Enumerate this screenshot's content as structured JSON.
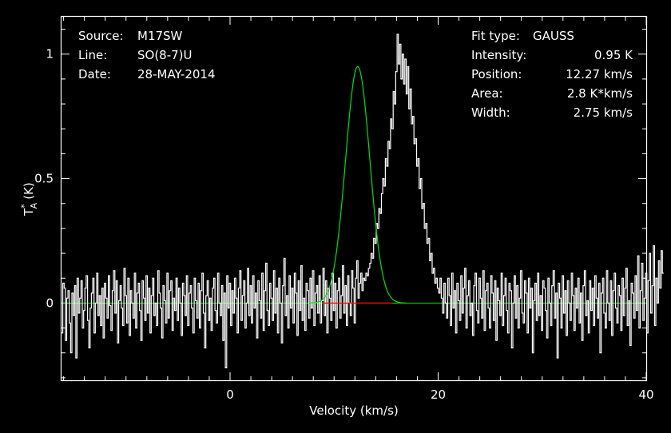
{
  "chart_data": {
    "type": "line",
    "title": "",
    "xlabel": "Velocity (km/s)",
    "ylabel_main": "T",
    "ylabel_sub": "A",
    "ylabel_sup": "*",
    "ylabel_unit": "(K)",
    "xlim": [
      -16.2,
      40
    ],
    "ylim": [
      -0.31,
      1.15
    ],
    "x_ticks": [
      {
        "value": 0,
        "label": "0"
      },
      {
        "value": 20,
        "label": "20"
      },
      {
        "value": 40,
        "label": "40"
      }
    ],
    "y_ticks": [
      {
        "value": 0,
        "label": "0"
      },
      {
        "value": 0.5,
        "label": "0.5"
      },
      {
        "value": 1,
        "label": "1"
      }
    ],
    "x_minor_step": 2,
    "y_minor_step": 0.1,
    "info_left": [
      {
        "key": "Source:",
        "value": "M17SW"
      },
      {
        "key": "Line:",
        "value": "SO(8-7)U"
      },
      {
        "key": "Date:",
        "value": "28-MAY-2014"
      }
    ],
    "info_right": [
      {
        "key": "Fit type:",
        "value": "GAUSS"
      },
      {
        "key": "Intensity:",
        "value": "0.95 K"
      },
      {
        "key": "Position:",
        "value": "12.27 km/s"
      },
      {
        "key": "Area:",
        "value": "2.8 K*km/s"
      },
      {
        "key": "Width:",
        "value": "2.75 km/s"
      }
    ],
    "fit": {
      "amplitude": 0.95,
      "center": 12.27,
      "fwhm": 2.75
    },
    "series": [
      {
        "x_start": -16.2,
        "x_step": 0.125,
        "color": "#ffffff",
        "values": [
          -0.12,
          0.08,
          0.06,
          -0.15,
          0.02,
          0.05,
          -0.08,
          -0.2,
          0.04,
          -0.05,
          0.07,
          -0.22,
          0.1,
          -0.04,
          0.02,
          0.09,
          -0.1,
          -0.03,
          0.06,
          0.11,
          -0.07,
          -0.18,
          -0.02,
          0.04,
          0.1,
          -0.12,
          0.0,
          0.12,
          -0.05,
          0.03,
          -0.09,
          0.06,
          -0.14,
          0.08,
          0.02,
          -0.06,
          0.11,
          -0.01,
          -0.11,
          0.05,
          0.13,
          -0.04,
          0.09,
          -0.16,
          0.01,
          0.07,
          -0.02,
          -0.09,
          0.14,
          0.03,
          -0.08,
          0.1,
          -0.13,
          0.05,
          0.0,
          -0.06,
          0.12,
          -0.1,
          0.04,
          0.08,
          -0.03,
          -0.15,
          0.09,
          0.02,
          -0.07,
          0.11,
          -0.04,
          0.06,
          -0.12,
          0.03,
          0.1,
          -0.05,
          0.0,
          -0.09,
          0.13,
          0.04,
          -0.02,
          -0.14,
          0.07,
          0.01,
          -0.08,
          0.12,
          -0.06,
          0.05,
          0.09,
          -0.11,
          0.02,
          -0.03,
          0.1,
          -0.07,
          0.06,
          0.0,
          -0.13,
          0.08,
          0.03,
          -0.05,
          0.11,
          -0.09,
          0.04,
          0.07,
          -0.02,
          -0.12,
          0.1,
          0.01,
          -0.06,
          0.08,
          -0.1,
          0.05,
          0.12,
          -0.04,
          -0.18,
          0.03,
          0.09,
          -0.07,
          0.02,
          -0.11,
          0.06,
          0.1,
          -0.03,
          -0.08,
          0.12,
          0.0,
          -0.05,
          0.07,
          -0.15,
          0.04,
          -0.26,
          0.11,
          -0.02,
          0.08,
          -0.09,
          0.05,
          -0.04,
          0.1,
          0.02,
          -0.12,
          0.06,
          0.13,
          -0.07,
          0.03,
          0.09,
          -0.1,
          0.0,
          0.14,
          -0.05,
          0.07,
          -0.08,
          0.11,
          -0.02,
          0.04,
          -0.14,
          0.09,
          0.01,
          -0.06,
          0.12,
          -0.11,
          0.05,
          0.16,
          -0.03,
          -0.09,
          0.08,
          0.02,
          -0.07,
          0.13,
          -0.04,
          0.06,
          -0.12,
          0.1,
          0.0,
          -0.16,
          0.07,
          0.18,
          -0.05,
          0.03,
          -0.1,
          0.11,
          -0.02,
          0.06,
          -0.08,
          0.12,
          0.04,
          -0.13,
          0.09,
          -0.03,
          0.15,
          -0.07,
          0.02,
          -0.11,
          0.08,
          0.05,
          -0.06,
          0.1,
          -0.02,
          0.13,
          -0.09,
          0.04,
          0.07,
          -0.04,
          0.11,
          -0.08,
          0.01,
          0.14,
          -0.05,
          0.09,
          -0.12,
          0.06,
          0.02,
          -0.07,
          0.12,
          -0.03,
          0.08,
          -0.1,
          0.05,
          0.1,
          -0.06,
          0.03,
          0.15,
          -0.04,
          0.07,
          -0.09,
          0.11,
          0.0,
          -0.05,
          0.13,
          0.06,
          -0.08,
          0.1,
          0.17,
          0.02,
          0.08,
          0.12,
          0.05,
          0.1,
          0.09,
          0.12,
          0.11,
          0.14,
          0.16,
          0.2,
          0.18,
          0.26,
          0.24,
          0.32,
          0.3,
          0.38,
          0.36,
          0.44,
          0.5,
          0.47,
          0.58,
          0.55,
          0.65,
          0.62,
          0.74,
          0.7,
          0.85,
          0.8,
          0.93,
          1.08,
          0.96,
          1.04,
          0.9,
          1.0,
          0.88,
          0.98,
          0.84,
          0.95,
          0.78,
          0.86,
          0.72,
          0.75,
          0.64,
          0.66,
          0.55,
          0.58,
          0.46,
          0.5,
          0.38,
          0.4,
          0.3,
          0.32,
          0.24,
          0.26,
          0.17,
          0.2,
          0.12,
          0.14,
          0.08,
          0.1,
          0.06,
          0.04,
          0.1,
          0.02,
          -0.04,
          0.08,
          0.0,
          -0.06,
          0.1,
          0.03,
          -0.09,
          0.12,
          -0.02,
          0.05,
          -0.12,
          0.08,
          0.01,
          -0.07,
          0.11,
          -0.04,
          0.06,
          0.14,
          -0.1,
          0.03,
          0.09,
          -0.05,
          0.0,
          -0.13,
          0.07,
          0.12,
          -0.03,
          -0.08,
          0.1,
          0.02,
          -0.06,
          0.13,
          -0.11,
          0.05,
          0.08,
          -0.02,
          -0.1,
          0.11,
          0.04,
          -0.07,
          0.09,
          -0.15,
          0.06,
          0.01,
          -0.05,
          0.12,
          -0.09,
          0.03,
          0.1,
          -0.03,
          -0.12,
          0.08,
          0.05,
          -0.18,
          0.0,
          0.11,
          -0.06,
          0.07,
          -0.1,
          0.02,
          0.13,
          -0.04,
          -0.08,
          0.09,
          0.04,
          -0.12,
          0.1,
          -0.02,
          0.06,
          -0.2,
          0.01,
          0.08,
          -0.07,
          0.12,
          -0.05,
          0.03,
          -0.11,
          0.09,
          0.06,
          -0.03,
          -0.14,
          0.1,
          0.0,
          -0.09,
          0.07,
          0.13,
          -0.06,
          0.04,
          -0.22,
          0.08,
          0.02,
          -0.1,
          0.11,
          -0.04,
          0.05,
          -0.13,
          0.09,
          0.0,
          -0.07,
          0.12,
          0.03,
          -0.11,
          0.06,
          -0.02,
          0.1,
          -0.08,
          0.04,
          -0.15,
          0.07,
          0.13,
          -0.05,
          0.01,
          -0.12,
          0.09,
          -0.03,
          0.06,
          -0.09,
          0.11,
          0.02,
          -0.06,
          0.08,
          -0.2,
          0.04,
          0.1,
          -0.04,
          -0.1,
          0.13,
          0.0,
          -0.07,
          0.09,
          -0.13,
          0.05,
          0.12,
          -0.02,
          -0.08,
          0.07,
          0.03,
          -0.11,
          0.1,
          -0.05,
          0.06,
          0.14,
          -0.09,
          0.01,
          -0.17,
          0.08,
          0.04,
          -0.06,
          0.11,
          -0.03,
          0.19,
          -0.1,
          0.05,
          0.16,
          -0.07,
          0.02,
          0.12,
          -0.12,
          0.09,
          0.2,
          -0.04,
          0.07,
          0.23,
          -0.09,
          0.1,
          0.0,
          0.17,
          0.06,
          0.21,
          0.12
        ]
      },
      {
        "name": "",
        "color": "#00e400",
        "kind": "gaussian-fit"
      },
      {
        "name": "",
        "color": "#ff0000",
        "kind": "fit-window",
        "x_range": [
          8.9,
          15.6
        ]
      }
    ]
  }
}
